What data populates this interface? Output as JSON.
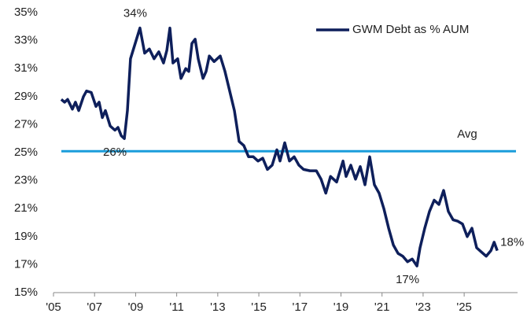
{
  "chart_data": {
    "type": "line",
    "series": [
      {
        "name": "GWM Debt as % AUM",
        "color": "#0e1f5b",
        "x": [
          2005.38,
          2005.54,
          2005.69,
          2005.92,
          2006.07,
          2006.23,
          2006.46,
          2006.61,
          2006.84,
          2007.07,
          2007.22,
          2007.38,
          2007.53,
          2007.76,
          2007.99,
          2008.14,
          2008.3,
          2008.45,
          2008.6,
          2008.75,
          2008.98,
          2009.21,
          2009.44,
          2009.67,
          2009.9,
          2010.13,
          2010.36,
          2010.52,
          2010.67,
          2010.82,
          2011.05,
          2011.21,
          2011.44,
          2011.59,
          2011.74,
          2011.9,
          2012.05,
          2012.28,
          2012.43,
          2012.59,
          2012.82,
          2013.12,
          2013.35,
          2013.58,
          2013.81,
          2014.04,
          2014.27,
          2014.5,
          2014.73,
          2014.96,
          2015.19,
          2015.42,
          2015.65,
          2015.88,
          2016.03,
          2016.26,
          2016.49,
          2016.72,
          2016.95,
          2017.18,
          2017.49,
          2017.8,
          2018.03,
          2018.26,
          2018.49,
          2018.79,
          2019.1,
          2019.25,
          2019.48,
          2019.71,
          2019.94,
          2020.17,
          2020.4,
          2020.63,
          2020.86,
          2021.09,
          2021.32,
          2021.55,
          2021.78,
          2022.01,
          2022.24,
          2022.47,
          2022.7,
          2022.85,
          2023.08,
          2023.31,
          2023.54,
          2023.77,
          2024.0,
          2024.23,
          2024.46,
          2024.69,
          2024.92,
          2025.15,
          2025.38,
          2025.61,
          2025.84,
          2026.07,
          2026.3,
          2026.46,
          2026.61
        ],
        "values": [
          28.8,
          28.6,
          28.8,
          28.1,
          28.6,
          28.0,
          29.0,
          29.4,
          29.3,
          28.3,
          28.6,
          27.5,
          28.0,
          26.9,
          26.6,
          26.8,
          26.2,
          26.0,
          28.0,
          31.7,
          32.8,
          33.9,
          32.1,
          32.4,
          31.7,
          32.2,
          31.4,
          32.3,
          33.9,
          31.4,
          31.7,
          30.3,
          31.0,
          30.8,
          32.8,
          33.1,
          31.7,
          30.3,
          30.8,
          31.9,
          31.5,
          31.9,
          30.8,
          29.4,
          28.0,
          25.8,
          25.5,
          24.7,
          24.7,
          24.4,
          24.6,
          23.8,
          24.1,
          25.2,
          24.4,
          25.7,
          24.4,
          24.7,
          24.1,
          23.8,
          23.7,
          23.7,
          23.1,
          22.1,
          23.3,
          22.9,
          24.4,
          23.3,
          24.1,
          23.1,
          24.0,
          22.7,
          24.7,
          22.7,
          22.1,
          21.0,
          19.6,
          18.4,
          17.8,
          17.6,
          17.2,
          17.4,
          16.9,
          18.2,
          19.6,
          20.8,
          21.6,
          21.3,
          22.3,
          20.8,
          20.2,
          20.1,
          19.9,
          19.0,
          19.6,
          18.2,
          17.9,
          17.6,
          18.0,
          18.6,
          18.0
        ]
      }
    ],
    "average": {
      "label": "Avg",
      "value": 25.1,
      "color": "#1a9ddb"
    },
    "annotations": [
      {
        "text": "34%",
        "x": 2009.21,
        "y": 33.9,
        "position": "above"
      },
      {
        "text": "26%",
        "x": 2008.45,
        "y": 26.0,
        "position": "below"
      },
      {
        "text": "17%",
        "x": 2022.7,
        "y": 16.9,
        "position": "below"
      },
      {
        "text": "18%",
        "x": 2026.61,
        "y": 18.0,
        "position": "right"
      }
    ],
    "xlim": [
      2005,
      2027.6
    ],
    "xticks": [
      {
        "value": 2005,
        "label": "'05"
      },
      {
        "value": 2007,
        "label": "'07"
      },
      {
        "value": 2009,
        "label": "'09"
      },
      {
        "value": 2011,
        "label": "'11"
      },
      {
        "value": 2013,
        "label": "'13"
      },
      {
        "value": 2015,
        "label": "'15"
      },
      {
        "value": 2017,
        "label": "'17"
      },
      {
        "value": 2019,
        "label": "'19"
      },
      {
        "value": 2021,
        "label": "'21"
      },
      {
        "value": 2023,
        "label": "'23"
      },
      {
        "value": 2025,
        "label": "'25"
      }
    ],
    "ylim": [
      15,
      35
    ],
    "yticks": [
      {
        "value": 15,
        "label": "15%"
      },
      {
        "value": 17,
        "label": "17%"
      },
      {
        "value": 19,
        "label": "19%"
      },
      {
        "value": 21,
        "label": "21%"
      },
      {
        "value": 23,
        "label": "23%"
      },
      {
        "value": 25,
        "label": "25%"
      },
      {
        "value": 27,
        "label": "27%"
      },
      {
        "value": 29,
        "label": "29%"
      },
      {
        "value": 31,
        "label": "31%"
      },
      {
        "value": 33,
        "label": "33%"
      },
      {
        "value": 35,
        "label": "35%"
      }
    ],
    "grid": false,
    "legend": "top-right"
  }
}
